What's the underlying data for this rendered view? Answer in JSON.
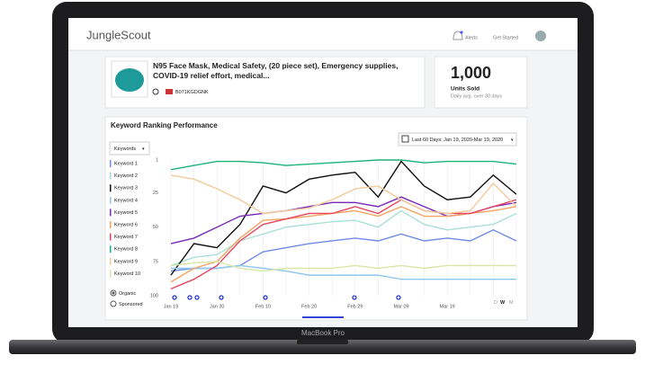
{
  "header": {
    "brand": "JungleScout",
    "alerts": "Alerts",
    "cta": "Get Started"
  },
  "product": {
    "title": "N95 Face Mask, Medical Safety, (20 piece set), Emergency supplies, COVID-19 relief effort, medical...",
    "asin": "B071KGDGNK"
  },
  "units": {
    "value": "1,000",
    "label": "Units Sold",
    "note": "Daily avg. over 30 days"
  },
  "controls": {
    "dropdown": "Keywords",
    "range": "Last 60 Days: Jan 19, 2020-Mar 19, 2020",
    "radios": [
      "Organic",
      "Sponsored"
    ],
    "periods": [
      "D",
      "W",
      "M"
    ]
  },
  "device": {
    "label": "MacBook Pro"
  },
  "chart_data": {
    "type": "line",
    "title": "Keyword Ranking Performance",
    "categories": [
      "Jan 19",
      null,
      "Jan 30",
      null,
      "Feb 10",
      null,
      "Feb 20",
      null,
      "Feb 29",
      null,
      "Mar 09",
      null,
      "Mar 19",
      null,
      null,
      null
    ],
    "ylim": [
      100,
      1
    ],
    "yticks": [
      1,
      25,
      50,
      75,
      100
    ],
    "grid": false,
    "series": [
      {
        "name": "Keyword 1",
        "color": "#6f8be8",
        "values": [
          82,
          80,
          80,
          78,
          68,
          65,
          62,
          60,
          58,
          60,
          55,
          60,
          58,
          60,
          52,
          60
        ]
      },
      {
        "name": "Keyword 2",
        "color": "#a8e0d8",
        "values": [
          78,
          72,
          70,
          60,
          55,
          50,
          48,
          46,
          45,
          50,
          38,
          48,
          52,
          50,
          48,
          40
        ]
      },
      {
        "name": "Keyword 3",
        "color": "#111111",
        "values": [
          85,
          62,
          65,
          48,
          20,
          25,
          15,
          12,
          10,
          28,
          2,
          20,
          30,
          28,
          12,
          26
        ]
      },
      {
        "name": "Keyword 4",
        "color": "#8ec8ee",
        "values": [
          80,
          80,
          80,
          78,
          80,
          82,
          85,
          85,
          85,
          85,
          88,
          88,
          88,
          88,
          88,
          88
        ]
      },
      {
        "name": "Keyword 5",
        "color": "#7a2ab8",
        "values": [
          62,
          58,
          50,
          42,
          40,
          38,
          35,
          32,
          32,
          35,
          28,
          35,
          42,
          40,
          35,
          32
        ]
      },
      {
        "name": "Keyword 6",
        "color": "#f4a460",
        "values": [
          90,
          80,
          75,
          58,
          45,
          44,
          42,
          40,
          38,
          42,
          35,
          42,
          42,
          40,
          38,
          35
        ]
      },
      {
        "name": "Keyword 7",
        "color": "#e8455f",
        "values": [
          95,
          88,
          78,
          60,
          48,
          44,
          40,
          40,
          35,
          40,
          30,
          38,
          40,
          40,
          35,
          30
        ]
      },
      {
        "name": "Keyword 8",
        "color": "#1ab37a",
        "values": [
          8,
          5,
          2,
          2,
          3,
          5,
          4,
          3,
          2,
          1,
          1,
          3,
          2,
          2,
          2,
          4
        ]
      },
      {
        "name": "Keyword 9",
        "color": "#f5c99a",
        "values": [
          12,
          15,
          22,
          30,
          40,
          38,
          36,
          30,
          22,
          20,
          30,
          38,
          40,
          38,
          18,
          35
        ]
      },
      {
        "name": "Keyword 10",
        "color": "#d9e6a8",
        "values": [
          78,
          76,
          75,
          80,
          82,
          80,
          80,
          80,
          78,
          80,
          78,
          80,
          78,
          78,
          78,
          78
        ]
      }
    ]
  }
}
